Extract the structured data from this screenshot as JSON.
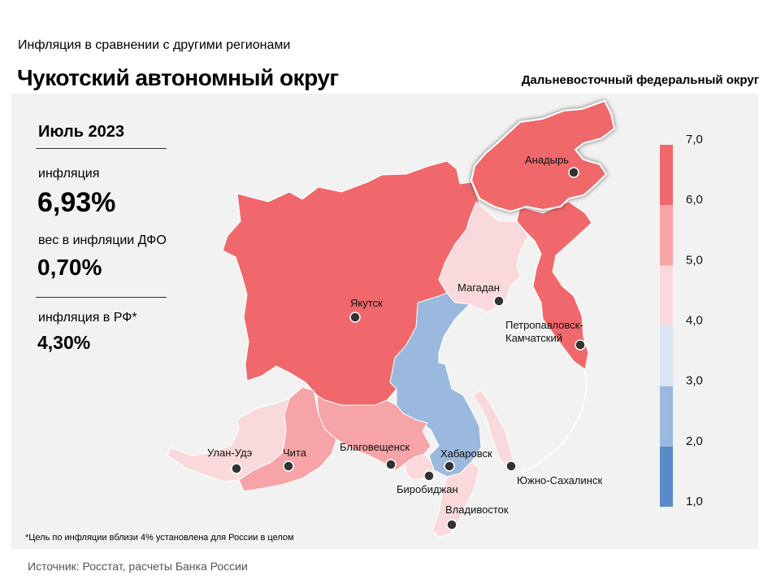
{
  "header": {
    "subtitle": "Инфляция  в сравнении  с другими регионами",
    "title": "Чукотский автономный округ",
    "region": "Дальневосточный федеральный округ"
  },
  "stats": {
    "period": "Июль 2023",
    "inflation_label": "инфляция",
    "inflation_value": "6,93%",
    "weight_label": "вес в инфляции  ДФО",
    "weight_value": "0,70%",
    "rf_label": "инфляция  в РФ*",
    "rf_value": "4,30%"
  },
  "footnote": "*Цель по инфляции вблизи 4% установлена для России в целом",
  "source": "Источник: Росстат, расчеты  Банка России",
  "chart_data": {
    "type": "choropleth",
    "title": "Чукотский автономный округ",
    "legend": {
      "position": "right",
      "breaks": [
        "1,0",
        "2,0",
        "3,0",
        "4,0",
        "5,0",
        "6,0",
        "7,0"
      ],
      "colors": [
        "#5b8cc8",
        "#9bb8de",
        "#dae4f3",
        "#f9d9dc",
        "#f6a4a8",
        "#f0686b"
      ]
    },
    "regions": [
      {
        "name": "Анадырь",
        "bin": "6,0–7,0",
        "color": "#f0686b",
        "highlighted": true
      },
      {
        "name": "Якутск",
        "bin": "6,0–7,0",
        "color": "#f0686b"
      },
      {
        "name": "Петропавловск-Камчатский",
        "bin": "6,0–7,0",
        "color": "#f0686b"
      },
      {
        "name": "Магадан",
        "bin": "4,0–5,0",
        "color": "#f9d9dc"
      },
      {
        "name": "Хабаровск",
        "bin": "2,0–3,0",
        "color": "#9bb8de"
      },
      {
        "name": "Южно-Сахалинск",
        "bin": "4,0–5,0",
        "color": "#f9d9dc"
      },
      {
        "name": "Благовещенск",
        "bin": "5,0–6,0",
        "color": "#f6a4a8"
      },
      {
        "name": "Биробиджан",
        "bin": "4,0–5,0",
        "color": "#f9d9dc"
      },
      {
        "name": "Владивосток",
        "bin": "4,0–5,0",
        "color": "#f9d9dc"
      },
      {
        "name": "Чита",
        "bin": "5,0–6,0",
        "color": "#f6a4a8"
      },
      {
        "name": "Улан-Удэ",
        "bin": "4,0–5,0",
        "color": "#f9d9dc"
      }
    ]
  }
}
